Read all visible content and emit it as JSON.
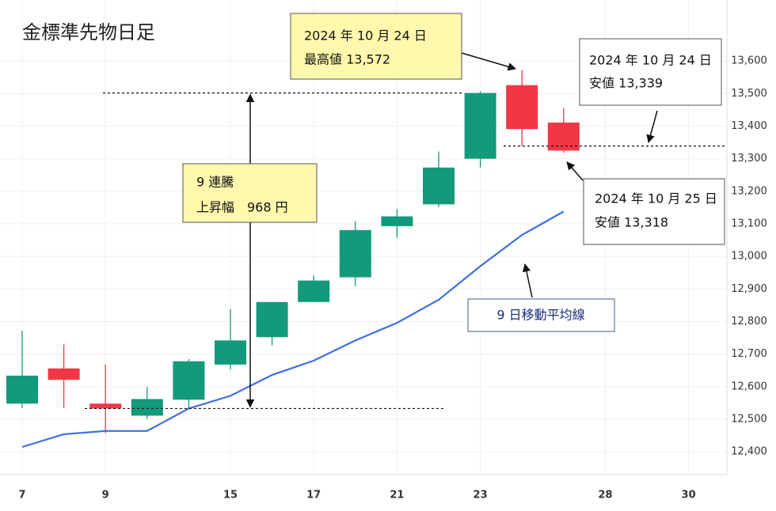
{
  "chart_data": {
    "type": "candlestick",
    "title": "金標準先物日足",
    "categories": [
      "7",
      null,
      "9",
      null,
      null,
      "15",
      null,
      "17",
      null,
      "21",
      null,
      "23",
      null,
      null,
      "28",
      null,
      "30"
    ],
    "open": [
      12548,
      12656,
      12548,
      12511,
      12560,
      12668,
      12752,
      12860,
      12936,
      13093,
      13160,
      13300,
      13526,
      13411,
      null,
      null,
      null
    ],
    "high": [
      12771,
      12730,
      12668,
      12599,
      12685,
      12838,
      12860,
      12941,
      13108,
      13145,
      13322,
      13507,
      13572,
      13455,
      null,
      null,
      null
    ],
    "low": [
      12535,
      12535,
      12457,
      12501,
      12530,
      12653,
      12727,
      12860,
      12909,
      13057,
      13152,
      13273,
      13339,
      13318,
      null,
      null,
      null
    ],
    "close": [
      12634,
      12621,
      12533,
      12562,
      12678,
      12742,
      12860,
      12926,
      13081,
      13123,
      13273,
      13502,
      13391,
      13325,
      null,
      null,
      null
    ],
    "up_color": "#129a7a",
    "down_color": "#f23645",
    "lines": [
      {
        "name": "9 日移動平均線",
        "color": "#3d6fe6",
        "values": [
          12415,
          12454,
          12464,
          12464,
          12533,
          12572,
          12636,
          12680,
          12742,
          12796,
          12867,
          12970,
          13066,
          13138,
          null,
          null,
          null
        ]
      }
    ],
    "ylim": [
      12330,
      13700
    ],
    "yticks": [
      {
        "value": 12400,
        "label": "12,400"
      },
      {
        "value": 12500,
        "label": "12,500"
      },
      {
        "value": 12600,
        "label": "12,600"
      },
      {
        "value": 12700,
        "label": "12,700"
      },
      {
        "value": 12800,
        "label": "12,800"
      },
      {
        "value": 12900,
        "label": "12,900"
      },
      {
        "value": 13000,
        "label": "13,000"
      },
      {
        "value": 13100,
        "label": "13,100"
      },
      {
        "value": 13200,
        "label": "13,200"
      },
      {
        "value": 13300,
        "label": "13,300"
      },
      {
        "value": 13400,
        "label": "13,400"
      },
      {
        "value": 13500,
        "label": "13,500"
      },
      {
        "value": 13600,
        "label": "13,600"
      }
    ],
    "grid": true,
    "annotations": [
      {
        "lines": [
          "2024 年 10 月 24 日",
          "最高値 13,572"
        ]
      },
      {
        "lines": [
          "2024 年 10 月 24 日",
          "安値 13,339"
        ]
      },
      {
        "lines": [
          "2024 年 10 月 25 日",
          "安値 13,318"
        ]
      },
      {
        "lines": [
          "9 連騰",
          "上昇幅　968 円"
        ]
      }
    ]
  }
}
